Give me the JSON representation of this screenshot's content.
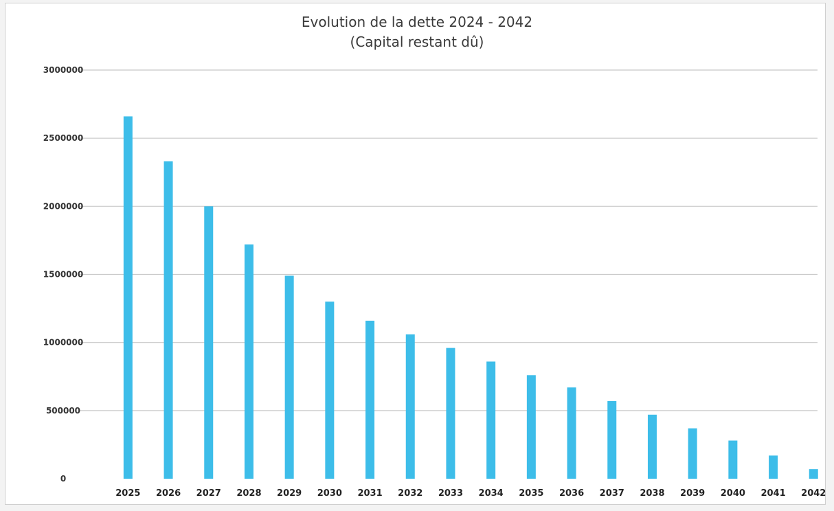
{
  "chart_data": {
    "type": "bar",
    "title": "Evolution de la dette 2024 - 2042",
    "subtitle": "(Capital restant dû)",
    "xlabel": "",
    "ylabel": "",
    "categories": [
      "2025",
      "2026",
      "2027",
      "2028",
      "2029",
      "2030",
      "2031",
      "2032",
      "2033",
      "2034",
      "2035",
      "2036",
      "2037",
      "2038",
      "2039",
      "2040",
      "2041",
      "2042"
    ],
    "values": [
      2660000,
      2330000,
      2000000,
      1720000,
      1490000,
      1300000,
      1160000,
      1060000,
      960000,
      860000,
      760000,
      670000,
      570000,
      470000,
      370000,
      280000,
      170000,
      70000
    ],
    "ylim": [
      0,
      3000000
    ],
    "yticks": [
      "0",
      "500000",
      "1000000",
      "1500000",
      "2000000",
      "2500000",
      "3000000"
    ],
    "ytick_values": [
      0,
      500000,
      1000000,
      1500000,
      2000000,
      2500000,
      3000000
    ],
    "grid": true,
    "legend": "none",
    "bar_color": "#3dbde9",
    "grid_color": "#c8c8c8"
  }
}
